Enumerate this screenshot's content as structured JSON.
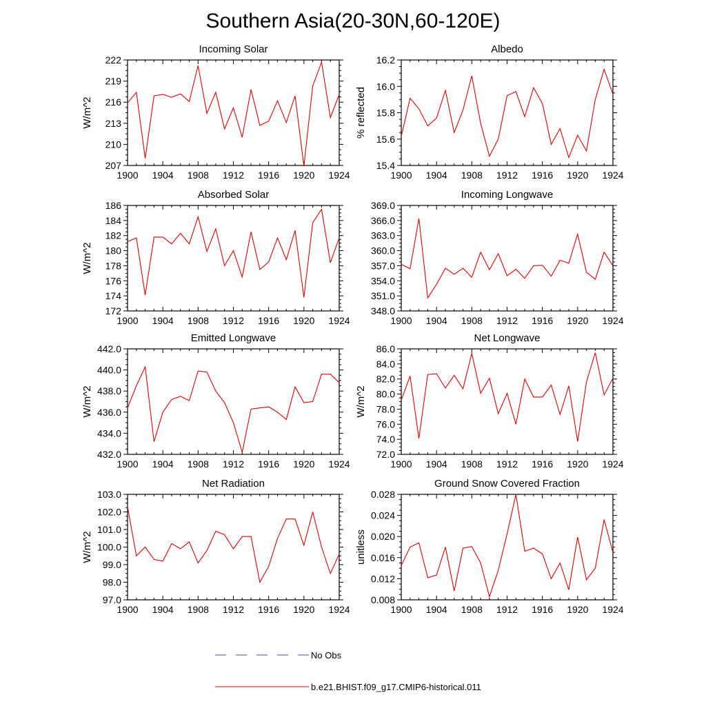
{
  "title": "Southern Asia(20-30N,60-120E)",
  "legend": {
    "items": [
      {
        "label": "No Obs",
        "color": "#4444cc",
        "style": "dashed"
      },
      {
        "label": "b.e21.BHIST.f09_g17.CMIP6-historical.011",
        "color": "#dd0000",
        "style": "solid"
      }
    ]
  },
  "chart_data": [
    {
      "type": "line",
      "title": "Incoming Solar",
      "ylabel": "W/m^2",
      "x": [
        1900,
        1901,
        1902,
        1903,
        1904,
        1905,
        1906,
        1907,
        1908,
        1909,
        1910,
        1911,
        1912,
        1913,
        1914,
        1915,
        1916,
        1917,
        1918,
        1919,
        1920,
        1921,
        1922,
        1923,
        1924
      ],
      "series": [
        {
          "color": "#dd0000",
          "values": [
            215.9,
            217.4,
            208.0,
            216.9,
            217.1,
            216.7,
            217.2,
            216.1,
            221.2,
            214.4,
            217.4,
            212.2,
            215.2,
            211.0,
            217.8,
            212.7,
            213.3,
            216.2,
            213.1,
            216.9,
            206.9,
            218.3,
            221.7,
            213.8,
            217.1
          ]
        }
      ],
      "xlim": [
        1900,
        1924
      ],
      "ylim": [
        207,
        222
      ],
      "xticks": [
        1900,
        1904,
        1908,
        1912,
        1916,
        1920,
        1924
      ],
      "yticks": [
        207,
        210,
        213,
        216,
        219,
        222
      ],
      "ytick_labels": [
        "207",
        "210",
        "213",
        "216",
        "219",
        "222"
      ]
    },
    {
      "type": "line",
      "title": "Albedo",
      "ylabel": "% reflected",
      "x": [
        1900,
        1901,
        1902,
        1903,
        1904,
        1905,
        1906,
        1907,
        1908,
        1909,
        1910,
        1911,
        1912,
        1913,
        1914,
        1915,
        1916,
        1917,
        1918,
        1919,
        1920,
        1921,
        1922,
        1923,
        1924
      ],
      "series": [
        {
          "color": "#dd0000",
          "values": [
            15.62,
            15.91,
            15.83,
            15.7,
            15.76,
            15.97,
            15.65,
            15.82,
            16.08,
            15.72,
            15.47,
            15.6,
            15.93,
            15.96,
            15.77,
            15.99,
            15.87,
            15.56,
            15.68,
            15.46,
            15.63,
            15.51,
            15.9,
            16.13,
            15.94
          ]
        }
      ],
      "xlim": [
        1900,
        1924
      ],
      "ylim": [
        15.4,
        16.2
      ],
      "xticks": [
        1900,
        1904,
        1908,
        1912,
        1916,
        1920,
        1924
      ],
      "yticks": [
        15.4,
        15.6,
        15.8,
        16.0,
        16.2
      ],
      "ytick_labels": [
        "15.4",
        "15.6",
        "15.8",
        "16.0",
        "16.2"
      ]
    },
    {
      "type": "line",
      "title": "Absorbed Solar",
      "ylabel": "W/m^2",
      "x": [
        1900,
        1901,
        1902,
        1903,
        1904,
        1905,
        1906,
        1907,
        1908,
        1909,
        1910,
        1911,
        1912,
        1913,
        1914,
        1915,
        1916,
        1917,
        1918,
        1919,
        1920,
        1921,
        1922,
        1923,
        1924
      ],
      "series": [
        {
          "color": "#dd0000",
          "values": [
            181.2,
            181.7,
            174.1,
            181.8,
            181.8,
            180.9,
            182.3,
            180.9,
            184.5,
            179.9,
            182.9,
            178.0,
            180.0,
            176.5,
            182.5,
            177.5,
            178.5,
            181.7,
            178.8,
            182.7,
            173.8,
            183.7,
            185.5,
            178.4,
            181.7
          ]
        }
      ],
      "xlim": [
        1900,
        1924
      ],
      "ylim": [
        172,
        186
      ],
      "xticks": [
        1900,
        1904,
        1908,
        1912,
        1916,
        1920,
        1924
      ],
      "yticks": [
        172,
        174,
        176,
        178,
        180,
        182,
        184,
        186
      ],
      "ytick_labels": [
        "172",
        "174",
        "176",
        "178",
        "180",
        "182",
        "184",
        "186"
      ]
    },
    {
      "type": "line",
      "title": "Incoming Longwave",
      "ylabel": "",
      "x": [
        1900,
        1901,
        1902,
        1903,
        1904,
        1905,
        1906,
        1907,
        1908,
        1909,
        1910,
        1911,
        1912,
        1913,
        1914,
        1915,
        1916,
        1917,
        1918,
        1919,
        1920,
        1921,
        1922,
        1923,
        1924
      ],
      "series": [
        {
          "color": "#dd0000",
          "values": [
            357.3,
            356.4,
            366.4,
            350.6,
            353.3,
            356.5,
            355.3,
            356.5,
            354.7,
            359.7,
            356.2,
            359.4,
            355.0,
            356.3,
            354.5,
            357.0,
            357.1,
            354.9,
            358.1,
            357.5,
            363.3,
            355.7,
            354.3,
            359.7,
            357.0
          ]
        }
      ],
      "xlim": [
        1900,
        1924
      ],
      "ylim": [
        348,
        369
      ],
      "xticks": [
        1900,
        1904,
        1908,
        1912,
        1916,
        1920,
        1924
      ],
      "yticks": [
        348,
        351,
        354,
        357,
        360,
        363,
        366,
        369
      ],
      "ytick_labels": [
        "348.0",
        "351.0",
        "354.0",
        "357.0",
        "360.0",
        "363.0",
        "366.0",
        "369.0"
      ]
    },
    {
      "type": "line",
      "title": "Emitted Longwave",
      "ylabel": "W/m^2",
      "x": [
        1900,
        1901,
        1902,
        1903,
        1904,
        1905,
        1906,
        1907,
        1908,
        1909,
        1910,
        1911,
        1912,
        1913,
        1914,
        1915,
        1916,
        1917,
        1918,
        1919,
        1920,
        1921,
        1922,
        1923,
        1924
      ],
      "series": [
        {
          "color": "#dd0000",
          "values": [
            436.4,
            438.5,
            440.3,
            433.2,
            436.0,
            437.2,
            437.5,
            437.1,
            439.9,
            439.8,
            438.0,
            436.9,
            435.0,
            432.2,
            436.3,
            436.4,
            436.5,
            436.0,
            435.3,
            438.4,
            436.9,
            437.0,
            439.6,
            439.6,
            438.8
          ]
        }
      ],
      "xlim": [
        1900,
        1924
      ],
      "ylim": [
        432,
        442
      ],
      "xticks": [
        1900,
        1904,
        1908,
        1912,
        1916,
        1920,
        1924
      ],
      "yticks": [
        432,
        434,
        436,
        438,
        440,
        442
      ],
      "ytick_labels": [
        "432.0",
        "434.0",
        "436.0",
        "438.0",
        "440.0",
        "442.0"
      ]
    },
    {
      "type": "line",
      "title": "Net Longwave",
      "ylabel": "W/m^2",
      "x": [
        1900,
        1901,
        1902,
        1903,
        1904,
        1905,
        1906,
        1907,
        1908,
        1909,
        1910,
        1911,
        1912,
        1913,
        1914,
        1915,
        1916,
        1917,
        1918,
        1919,
        1920,
        1921,
        1922,
        1923,
        1924
      ],
      "series": [
        {
          "color": "#dd0000",
          "values": [
            79.2,
            82.4,
            74.1,
            82.6,
            82.7,
            80.8,
            82.5,
            80.7,
            85.4,
            80.1,
            82.1,
            77.4,
            80.1,
            76.0,
            82.0,
            79.6,
            79.6,
            81.2,
            77.3,
            81.1,
            73.7,
            81.6,
            85.5,
            79.9,
            82.1
          ]
        }
      ],
      "xlim": [
        1900,
        1924
      ],
      "ylim": [
        72,
        86
      ],
      "xticks": [
        1900,
        1904,
        1908,
        1912,
        1916,
        1920,
        1924
      ],
      "yticks": [
        72,
        74,
        76,
        78,
        80,
        82,
        84,
        86
      ],
      "ytick_labels": [
        "72.0",
        "74.0",
        "76.0",
        "78.0",
        "80.0",
        "82.0",
        "84.0",
        "86.0"
      ]
    },
    {
      "type": "line",
      "title": "Net Radiation",
      "ylabel": "W/m^2",
      "x": [
        1900,
        1901,
        1902,
        1903,
        1904,
        1905,
        1906,
        1907,
        1908,
        1909,
        1910,
        1911,
        1912,
        1913,
        1914,
        1915,
        1916,
        1917,
        1918,
        1919,
        1920,
        1921,
        1922,
        1923,
        1924
      ],
      "series": [
        {
          "color": "#dd0000",
          "values": [
            102.3,
            99.5,
            100.0,
            99.3,
            99.2,
            100.2,
            99.9,
            100.3,
            99.1,
            99.8,
            100.9,
            100.7,
            99.9,
            100.6,
            100.6,
            98.0,
            98.9,
            100.5,
            101.6,
            101.6,
            100.1,
            102.0,
            100.0,
            98.5,
            99.6
          ]
        }
      ],
      "xlim": [
        1900,
        1924
      ],
      "ylim": [
        97,
        103
      ],
      "xticks": [
        1900,
        1904,
        1908,
        1912,
        1916,
        1920,
        1924
      ],
      "yticks": [
        97,
        98,
        99,
        100,
        101,
        102,
        103
      ],
      "ytick_labels": [
        "97.0",
        "98.0",
        "99.0",
        "100.0",
        "101.0",
        "102.0",
        "103.0"
      ]
    },
    {
      "type": "line",
      "title": "Ground Snow Covered Fraction",
      "ylabel": "unitless",
      "x": [
        1900,
        1901,
        1902,
        1903,
        1904,
        1905,
        1906,
        1907,
        1908,
        1909,
        1910,
        1911,
        1912,
        1913,
        1914,
        1915,
        1916,
        1917,
        1918,
        1919,
        1920,
        1921,
        1922,
        1923,
        1924
      ],
      "series": [
        {
          "color": "#dd0000",
          "values": [
            0.0145,
            0.018,
            0.0188,
            0.0122,
            0.0127,
            0.018,
            0.0097,
            0.0178,
            0.0181,
            0.015,
            0.0086,
            0.0136,
            0.0205,
            0.028,
            0.0172,
            0.0178,
            0.0167,
            0.012,
            0.015,
            0.0099,
            0.0199,
            0.0118,
            0.014,
            0.0232,
            0.017
          ]
        }
      ],
      "xlim": [
        1900,
        1924
      ],
      "ylim": [
        0.008,
        0.028
      ],
      "xticks": [
        1900,
        1904,
        1908,
        1912,
        1916,
        1920,
        1924
      ],
      "yticks": [
        0.008,
        0.012,
        0.016,
        0.02,
        0.024,
        0.028
      ],
      "ytick_labels": [
        "0.008",
        "0.012",
        "0.016",
        "0.020",
        "0.024",
        "0.028"
      ]
    }
  ]
}
